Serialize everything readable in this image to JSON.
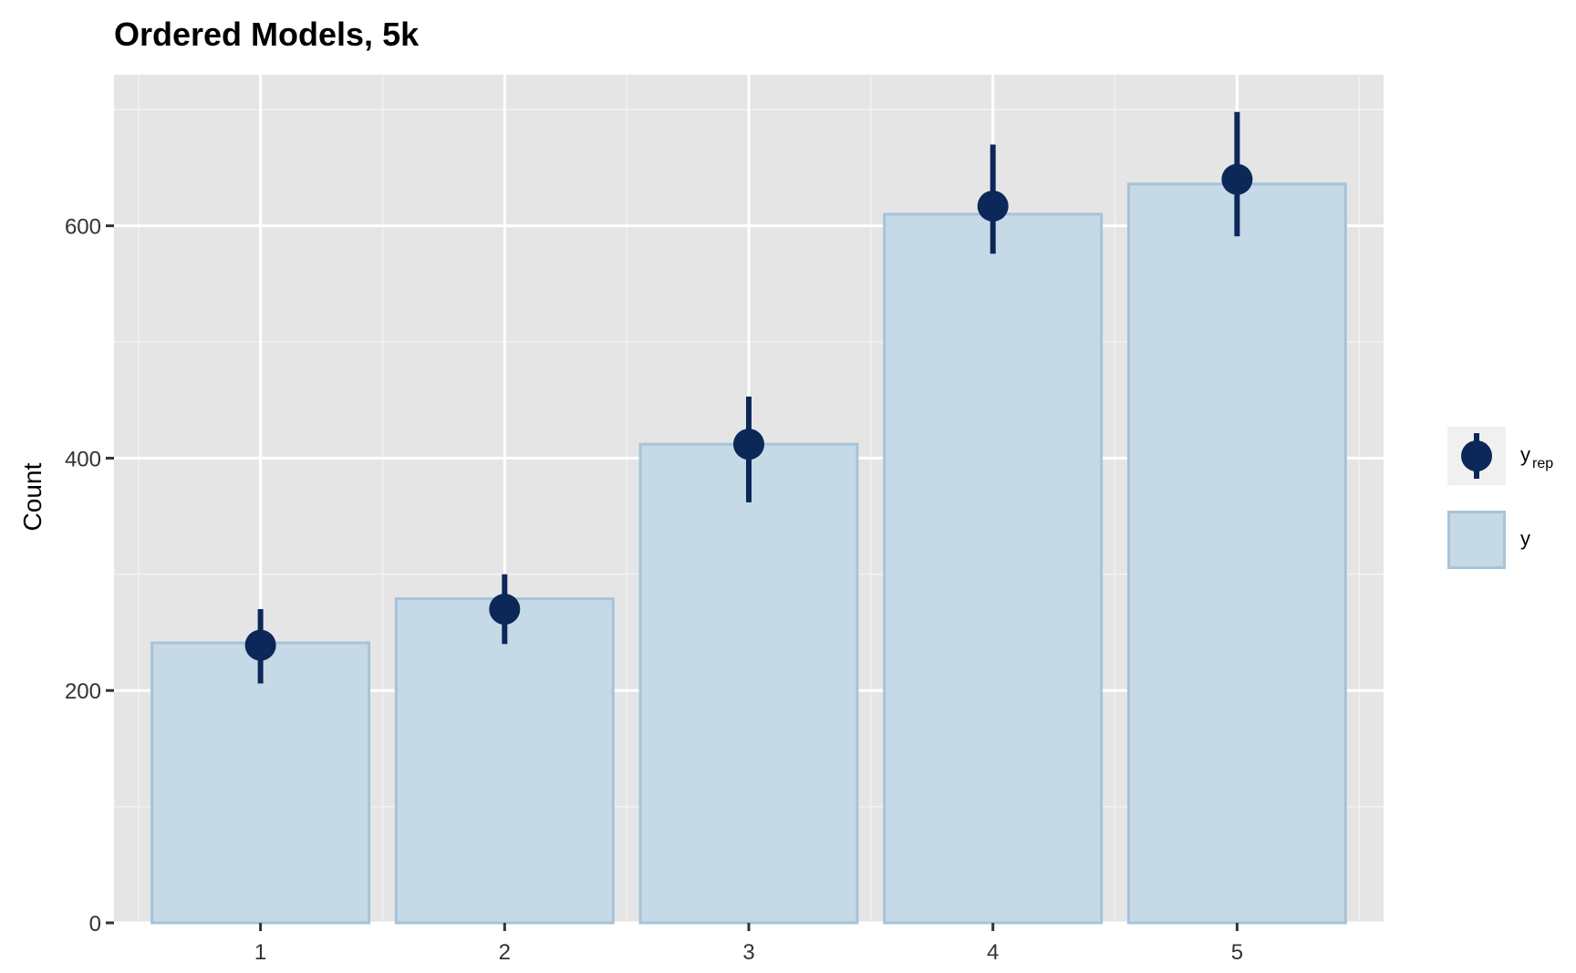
{
  "chart_data": {
    "type": "bar",
    "title": "Ordered Models, 5k",
    "xlabel": "",
    "ylabel": "Count",
    "categories": [
      "1",
      "2",
      "3",
      "4",
      "5"
    ],
    "ylim": [
      0,
      730
    ],
    "y_ticks": [
      0,
      200,
      400,
      600
    ],
    "grid": true,
    "legend_position": "right",
    "series": [
      {
        "name": "y",
        "kind": "bar",
        "values": [
          241,
          279,
          412,
          610,
          636
        ],
        "fill": "#c6d9e7",
        "stroke": "#a7c3d9"
      },
      {
        "name": "y_rep",
        "kind": "pointrange",
        "median": [
          239,
          270,
          412,
          617,
          640
        ],
        "lower": [
          206,
          240,
          362,
          576,
          591
        ],
        "upper": [
          270,
          300,
          453,
          670,
          698
        ],
        "color": "#0b2859"
      }
    ],
    "legend": [
      {
        "key": "yrep",
        "label": "y",
        "sub": "rep"
      },
      {
        "key": "y",
        "label": "y",
        "sub": ""
      }
    ],
    "colors": {
      "panel_background": "#e5e5e5",
      "grid_major": "#ffffff",
      "grid_minor": "#f2f2f2",
      "bar_fill": "#c6d9e7",
      "bar_stroke": "#a7c3d9",
      "point": "#0b2859"
    }
  }
}
